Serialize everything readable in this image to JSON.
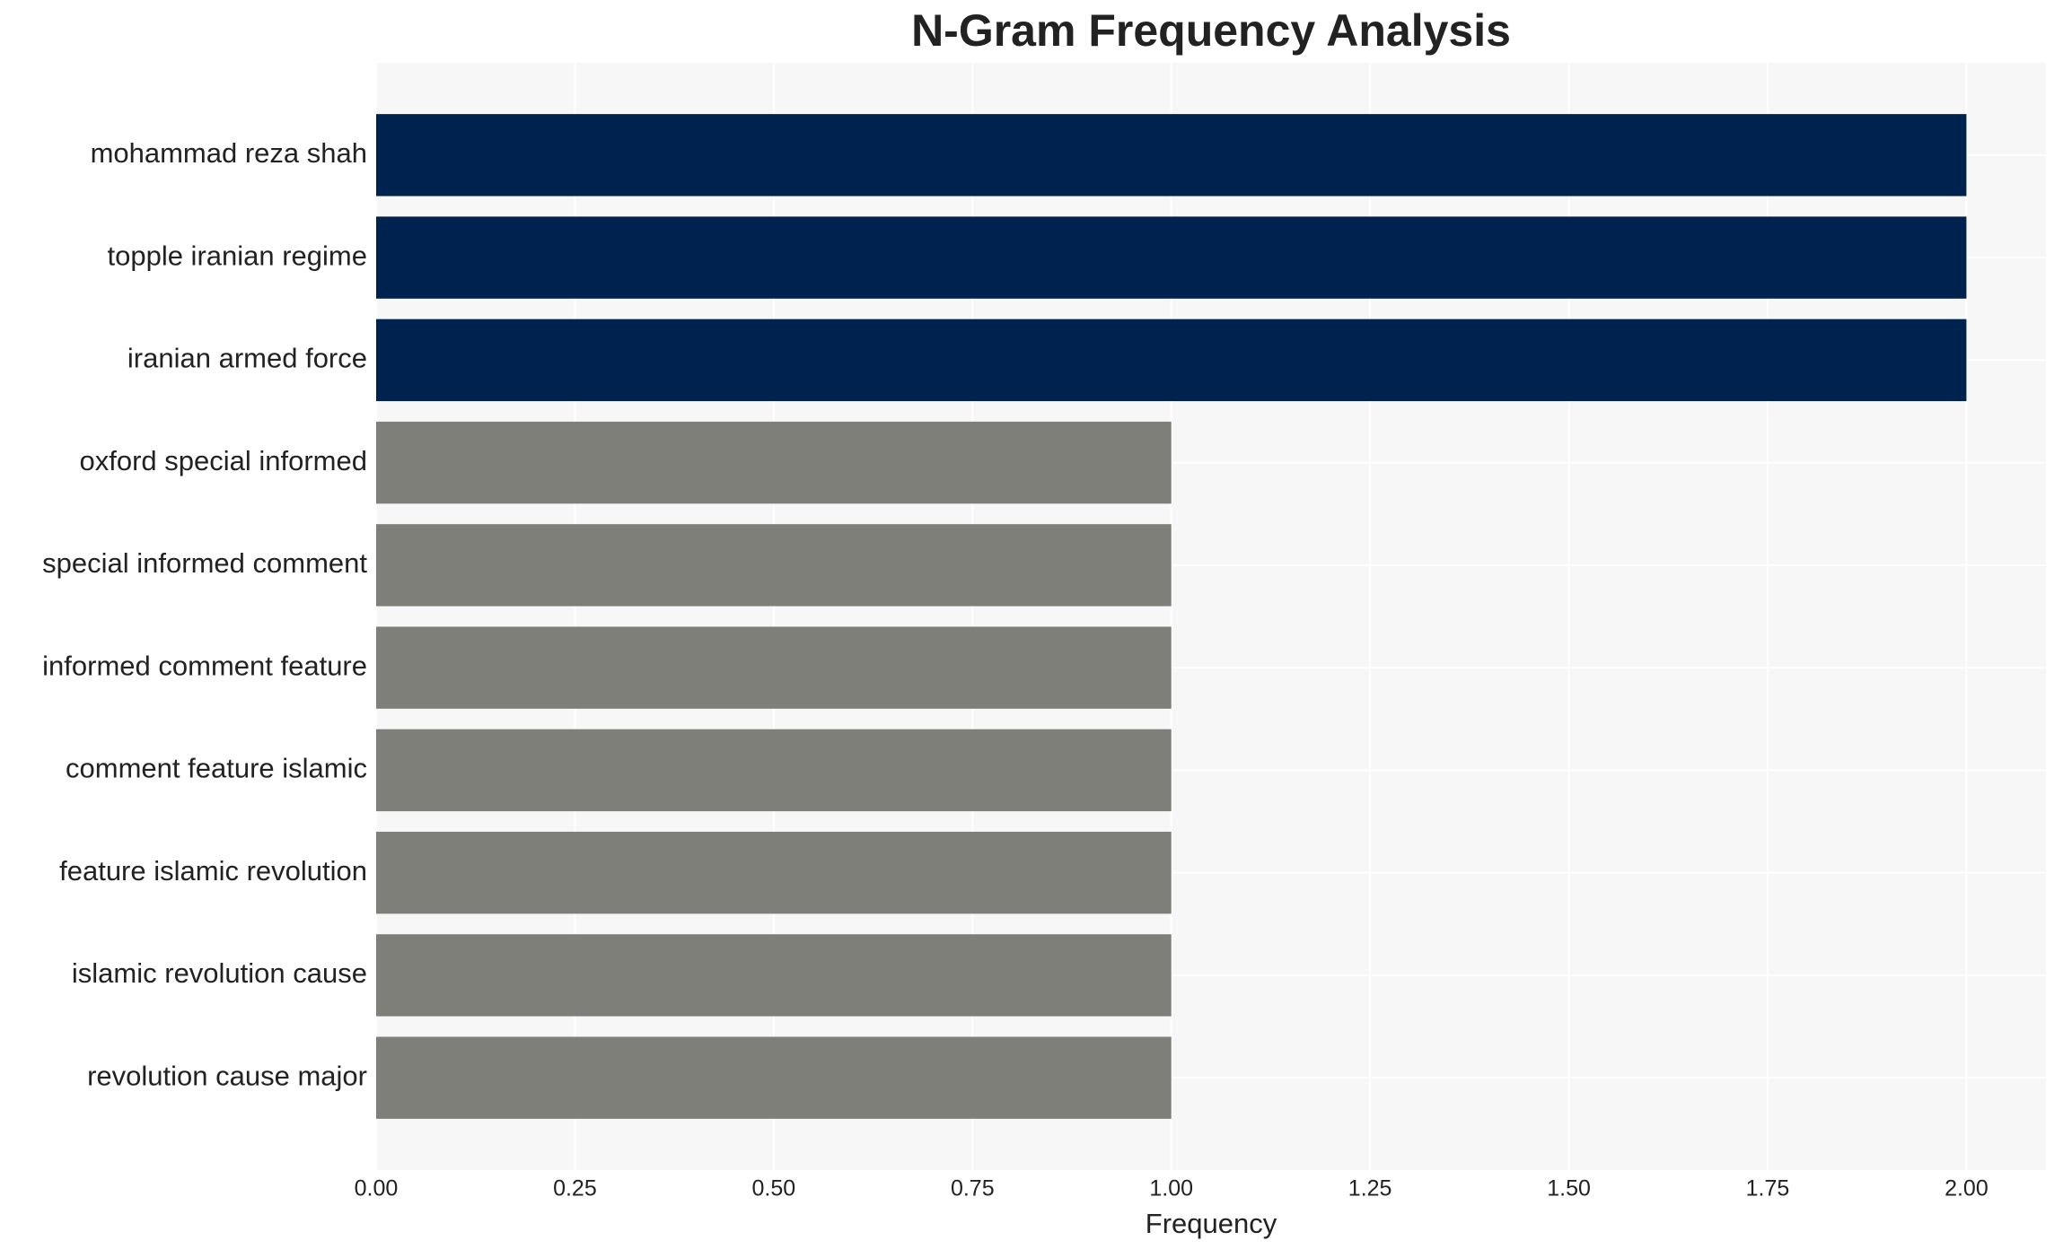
{
  "chart_data": {
    "type": "barh",
    "title": "N-Gram Frequency Analysis",
    "x_label": "Frequency",
    "categories": [
      "mohammad reza shah",
      "topple iranian regime",
      "iranian armed force",
      "oxford special informed",
      "special informed comment",
      "informed comment feature",
      "comment feature islamic",
      "feature islamic revolution",
      "islamic revolution cause",
      "revolution cause major"
    ],
    "values": [
      2,
      2,
      2,
      1,
      1,
      1,
      1,
      1,
      1,
      1
    ],
    "colors": [
      "#00224e",
      "#00224e",
      "#00224e",
      "#7f7f7a",
      "#7f7f7a",
      "#7f7f7a",
      "#7f7f7a",
      "#7f7f7a",
      "#7f7f7a",
      "#7f7f7a"
    ],
    "xlim": [
      0,
      2.1
    ],
    "xticks": [
      {
        "value": 0,
        "label": "0.00"
      },
      {
        "value": 0.25,
        "label": "0.25"
      },
      {
        "value": 0.5,
        "label": "0.50"
      },
      {
        "value": 0.75,
        "label": "0.75"
      },
      {
        "value": 1,
        "label": "1.00"
      },
      {
        "value": 1.25,
        "label": "1.25"
      },
      {
        "value": 1.5,
        "label": "1.50"
      },
      {
        "value": 1.75,
        "label": "1.75"
      },
      {
        "value": 2,
        "label": "2.00"
      }
    ],
    "grid": true
  }
}
